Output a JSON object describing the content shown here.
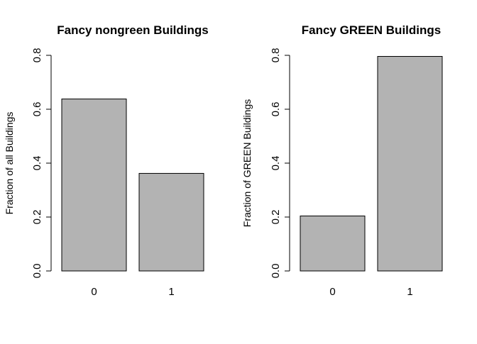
{
  "chart_data": [
    {
      "type": "bar",
      "title": "Fancy nongreen Buildings",
      "xlabel": "",
      "ylabel": "Fraction of all Buildings",
      "categories": [
        "0",
        "1"
      ],
      "values": [
        0.638,
        0.362
      ],
      "ylim": [
        0,
        0.8
      ],
      "yticks": [
        "0.0",
        "0.2",
        "0.4",
        "0.6",
        "0.8"
      ],
      "bar_color": "#b3b3b3",
      "grid": false
    },
    {
      "type": "bar",
      "title": "Fancy GREEN Buildings",
      "xlabel": "",
      "ylabel": "Fraction of GREEN Buildings",
      "categories": [
        "0",
        "1"
      ],
      "values": [
        0.204,
        0.796
      ],
      "ylim": [
        0,
        0.8
      ],
      "yticks": [
        "0.0",
        "0.2",
        "0.4",
        "0.6",
        "0.8"
      ],
      "bar_color": "#b3b3b3",
      "grid": false
    }
  ]
}
